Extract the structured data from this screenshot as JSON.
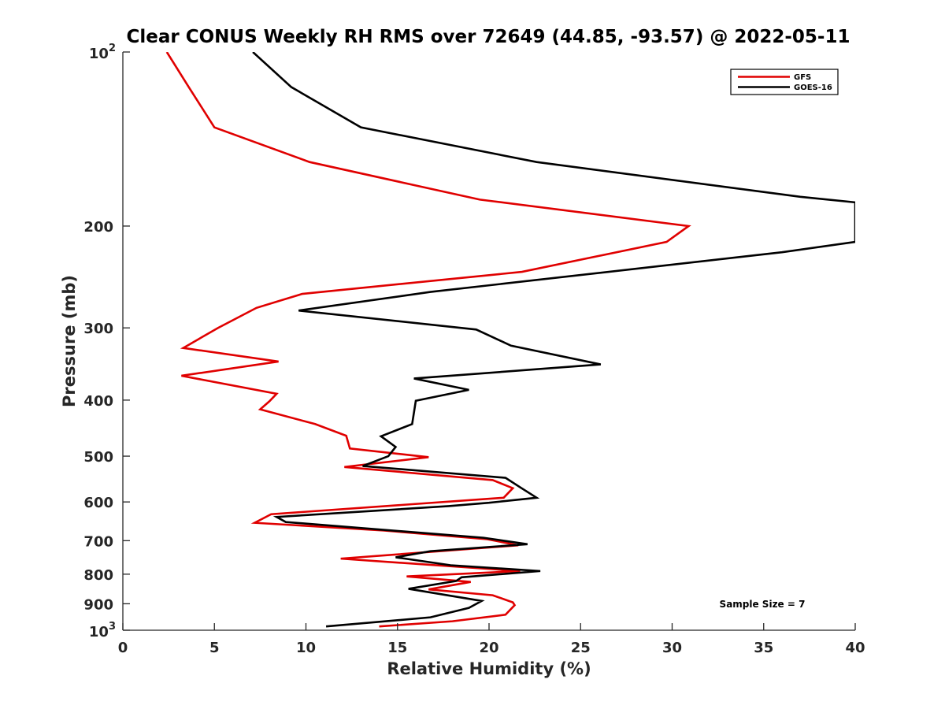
{
  "chart_data": {
    "type": "line",
    "title": "Clear CONUS Weekly RH RMS over 72649 (44.85, -93.57) @ 2022-05-11",
    "xlabel": "Relative Humidity (%)",
    "ylabel": "Pressure (mb)",
    "xlim": [
      0,
      40
    ],
    "ylim": [
      100,
      1000
    ],
    "y_scale": "log",
    "y_reversed": true,
    "x_ticks": [
      "0",
      "5",
      "10",
      "15",
      "20",
      "25",
      "30",
      "35",
      "40"
    ],
    "y_ticks": [
      {
        "value": 100,
        "base": "10",
        "exp": "2"
      },
      {
        "value": 200,
        "label": "200"
      },
      {
        "value": 300,
        "label": "300"
      },
      {
        "value": 400,
        "label": "400"
      },
      {
        "value": 500,
        "label": "500"
      },
      {
        "value": 600,
        "label": "600"
      },
      {
        "value": 700,
        "label": "700"
      },
      {
        "value": 800,
        "label": "800"
      },
      {
        "value": 900,
        "label": "900"
      },
      {
        "value": 1000,
        "base": "10",
        "exp": "3"
      }
    ],
    "grid": false,
    "legend_position": "top-right",
    "series": [
      {
        "name": "GFS",
        "color": "#e00000",
        "points": [
          [
            2.4,
            100
          ],
          [
            3.6,
            115
          ],
          [
            5.0,
            135
          ],
          [
            10.2,
            155
          ],
          [
            19.5,
            180
          ],
          [
            30.9,
            200
          ],
          [
            29.7,
            213
          ],
          [
            21.8,
            240
          ],
          [
            9.8,
            262
          ],
          [
            7.3,
            277
          ],
          [
            5.2,
            300
          ],
          [
            3.3,
            325
          ],
          [
            8.5,
            343
          ],
          [
            3.2,
            363
          ],
          [
            8.4,
            390
          ],
          [
            8.2,
            396
          ],
          [
            8.0,
            402
          ],
          [
            7.5,
            415
          ],
          [
            10.5,
            440
          ],
          [
            12.2,
            461
          ],
          [
            12.4,
            485
          ],
          [
            16.7,
            502
          ],
          [
            12.1,
            522
          ],
          [
            20.2,
            550
          ],
          [
            21.3,
            568
          ],
          [
            20.8,
            590
          ],
          [
            8.1,
            630
          ],
          [
            7.2,
            652
          ],
          [
            14.2,
            672
          ],
          [
            19.9,
            696
          ],
          [
            21.6,
            713
          ],
          [
            11.9,
            752
          ],
          [
            21.7,
            790
          ],
          [
            15.5,
            807
          ],
          [
            19.0,
            825
          ],
          [
            16.7,
            850
          ],
          [
            20.2,
            870
          ],
          [
            21.3,
            895
          ],
          [
            21.4,
            905
          ],
          [
            20.9,
            940
          ],
          [
            18.0,
            965
          ],
          [
            14.0,
            985
          ]
        ]
      },
      {
        "name": "GOES-16",
        "color": "#000000",
        "points": [
          [
            7.1,
            100
          ],
          [
            9.2,
            115
          ],
          [
            13.0,
            135
          ],
          [
            22.6,
            155
          ],
          [
            37.0,
            178
          ],
          [
            40.0,
            182
          ],
          [
            40.0,
            213
          ],
          [
            36.0,
            222
          ],
          [
            16.8,
            260
          ],
          [
            9.6,
            280
          ],
          [
            19.3,
            302
          ],
          [
            21.2,
            322
          ],
          [
            26.1,
            347
          ],
          [
            15.9,
            367
          ],
          [
            18.9,
            384
          ],
          [
            16.0,
            401
          ],
          [
            15.8,
            440
          ],
          [
            14.1,
            462
          ],
          [
            14.9,
            482
          ],
          [
            14.5,
            500
          ],
          [
            13.1,
            520
          ],
          [
            20.9,
            545
          ],
          [
            21.7,
            566
          ],
          [
            22.6,
            590
          ],
          [
            20.0,
            602
          ],
          [
            17.8,
            610
          ],
          [
            8.4,
            637
          ],
          [
            8.9,
            650
          ],
          [
            19.7,
            692
          ],
          [
            22.1,
            710
          ],
          [
            16.8,
            730
          ],
          [
            14.9,
            748
          ],
          [
            17.9,
            772
          ],
          [
            22.8,
            790
          ],
          [
            18.5,
            810
          ],
          [
            18.2,
            822
          ],
          [
            15.6,
            848
          ],
          [
            19.6,
            890
          ],
          [
            18.9,
            915
          ],
          [
            16.8,
            950
          ],
          [
            11.1,
            985
          ]
        ]
      }
    ],
    "annotations": [
      {
        "text": "Sample Size = 7"
      }
    ]
  }
}
